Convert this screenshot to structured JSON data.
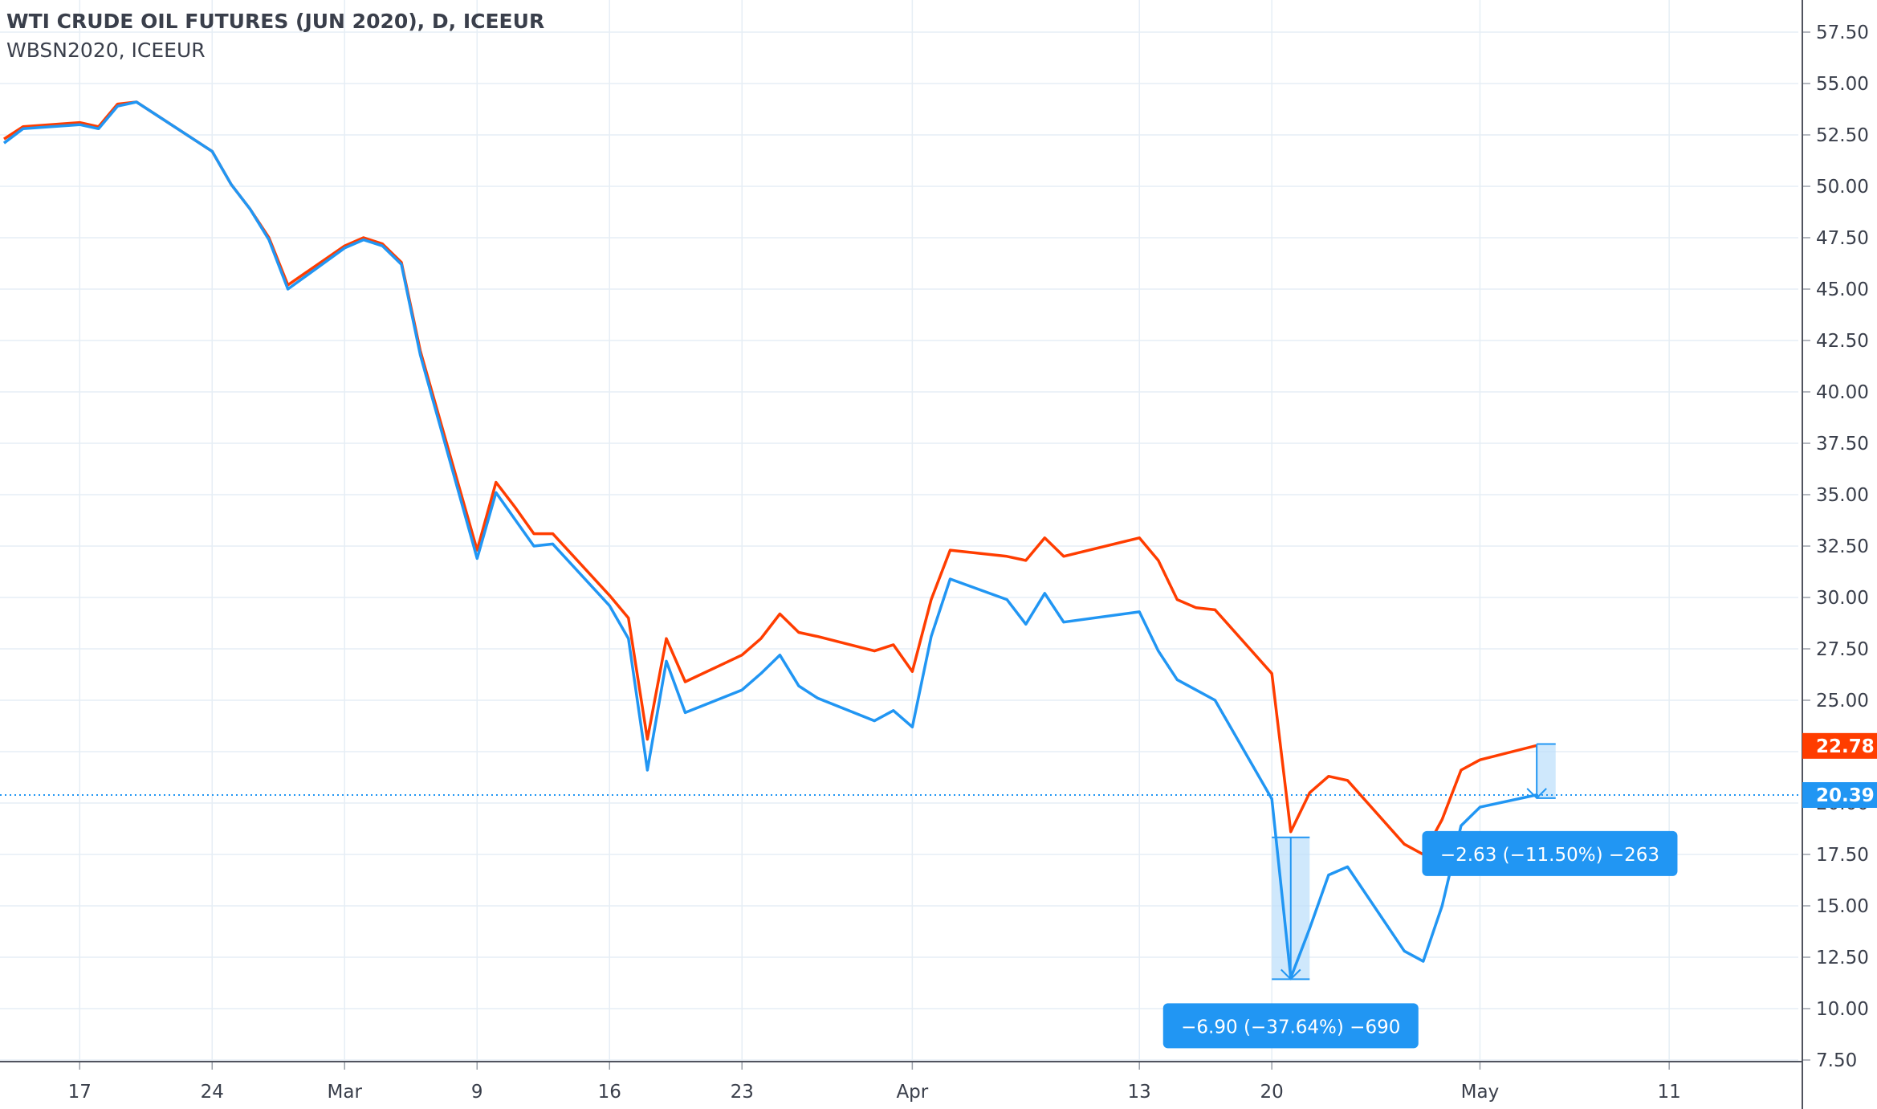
{
  "header": {
    "title": "WTI CRUDE OIL FUTURES (JUN 2020), D, ICEEUR",
    "subtitle": "WBSN2020, ICEEUR"
  },
  "colors": {
    "series_red": "#ff3d00",
    "series_blue": "#2196f3",
    "grid": "#e6eef5",
    "axis_text": "#3a3f4b",
    "annotation_bg": "#2196f3",
    "annotation_fill": "#bbdefb"
  },
  "chart_data": {
    "type": "line",
    "title": "WTI CRUDE OIL FUTURES (JUN 2020), D, ICEEUR",
    "xlabel": "",
    "ylabel": "",
    "ylim": [
      7.5,
      58.5
    ],
    "yticks": [
      7.5,
      10,
      12.5,
      15,
      17.5,
      20,
      22.5,
      25,
      27.5,
      30,
      32.5,
      35,
      37.5,
      40,
      42.5,
      45,
      47.5,
      50,
      52.5,
      55,
      57.5
    ],
    "ytick_labels": [
      "7.50",
      "10.00",
      "12.50",
      "15.00",
      "17.50",
      "20.00",
      "22.50",
      "25.00",
      "27.50",
      "30.00",
      "32.50",
      "35.00",
      "37.50",
      "40.00",
      "42.50",
      "45.00",
      "47.50",
      "50.00",
      "52.50",
      "55.00",
      "57.50"
    ],
    "x_start": "2020-02-13",
    "x_end": "2020-05-11",
    "xticks": [
      {
        "date": "2020-02-17",
        "label": "17"
      },
      {
        "date": "2020-02-24",
        "label": "24"
      },
      {
        "date": "2020-03-02",
        "label": "Mar"
      },
      {
        "date": "2020-03-09",
        "label": "9"
      },
      {
        "date": "2020-03-16",
        "label": "16"
      },
      {
        "date": "2020-03-23",
        "label": "23"
      },
      {
        "date": "2020-04-01",
        "label": "Apr"
      },
      {
        "date": "2020-04-13",
        "label": "13"
      },
      {
        "date": "2020-04-20",
        "label": "20"
      },
      {
        "date": "2020-05-01",
        "label": "May"
      },
      {
        "date": "2020-05-11",
        "label": "11"
      }
    ],
    "grid": true,
    "dates": [
      "2020-02-13",
      "2020-02-14",
      "2020-02-17",
      "2020-02-18",
      "2020-02-19",
      "2020-02-20",
      "2020-02-21",
      "2020-02-24",
      "2020-02-25",
      "2020-02-26",
      "2020-02-27",
      "2020-02-28",
      "2020-03-02",
      "2020-03-03",
      "2020-03-04",
      "2020-03-05",
      "2020-03-06",
      "2020-03-09",
      "2020-03-10",
      "2020-03-11",
      "2020-03-12",
      "2020-03-13",
      "2020-03-16",
      "2020-03-17",
      "2020-03-18",
      "2020-03-19",
      "2020-03-20",
      "2020-03-23",
      "2020-03-24",
      "2020-03-25",
      "2020-03-26",
      "2020-03-27",
      "2020-03-30",
      "2020-03-31",
      "2020-04-01",
      "2020-04-02",
      "2020-04-03",
      "2020-04-06",
      "2020-04-07",
      "2020-04-08",
      "2020-04-09",
      "2020-04-13",
      "2020-04-14",
      "2020-04-15",
      "2020-04-16",
      "2020-04-17",
      "2020-04-20",
      "2020-04-21",
      "2020-04-22",
      "2020-04-23",
      "2020-04-24",
      "2020-04-27",
      "2020-04-28",
      "2020-04-29",
      "2020-04-30",
      "2020-05-01",
      "2020-05-04"
    ],
    "series": [
      {
        "name": "WTI CRUDE OIL FUTURES (JUN 2020)",
        "color": "#ff3d00",
        "values": [
          52.3,
          52.9,
          53.1,
          52.9,
          54.0,
          54.1,
          53.5,
          51.7,
          50.1,
          48.9,
          47.5,
          45.2,
          47.1,
          47.5,
          47.2,
          46.3,
          42.0,
          32.3,
          35.6,
          34.4,
          33.1,
          33.1,
          30.1,
          29.0,
          23.1,
          28.0,
          25.9,
          27.2,
          28.0,
          29.2,
          28.3,
          28.1,
          27.4,
          27.7,
          26.4,
          29.9,
          32.3,
          32.0,
          31.8,
          32.9,
          32.0,
          32.9,
          31.8,
          29.9,
          29.5,
          29.4,
          26.3,
          18.6,
          20.5,
          21.3,
          21.1,
          18.0,
          17.5,
          19.2,
          21.6,
          22.1,
          22.8
        ]
      },
      {
        "name": "WBSN2020",
        "color": "#2196f3",
        "values": [
          52.1,
          52.8,
          53.0,
          52.8,
          53.9,
          54.1,
          53.5,
          51.7,
          50.1,
          48.9,
          47.4,
          45.0,
          47.0,
          47.4,
          47.1,
          46.2,
          41.8,
          31.9,
          35.1,
          33.8,
          32.5,
          32.6,
          29.6,
          28.0,
          21.6,
          26.9,
          24.4,
          25.5,
          26.3,
          27.2,
          25.7,
          25.1,
          24.0,
          24.5,
          23.7,
          28.1,
          30.9,
          29.9,
          28.7,
          30.2,
          28.8,
          29.3,
          27.4,
          26.0,
          25.5,
          25.0,
          20.2,
          11.5,
          13.9,
          16.5,
          16.9,
          12.8,
          12.3,
          15.0,
          18.9,
          19.8,
          20.4
        ]
      }
    ],
    "last_values": [
      {
        "label": "22.78",
        "value": 22.78,
        "color": "#ff3d00"
      },
      {
        "label": "20.39",
        "value": 20.39,
        "color": "#2196f3"
      }
    ],
    "price_line": {
      "value": 20.39,
      "style": "dotted"
    },
    "annotations": [
      {
        "text": "−6.90 (−37.64%) −690",
        "date_from": "2020-04-20",
        "date_to": "2020-04-22",
        "from": 18.33,
        "to": 11.43,
        "date_center": "2020-04-21",
        "label_date": "2020-04-21"
      },
      {
        "text": "−2.63 (−11.50%) −263",
        "date_from": "2020-05-04",
        "date_to": "2020-05-05",
        "from": 22.87,
        "to": 20.24,
        "date_center": "2020-05-04",
        "label_date": "2020-05-01"
      }
    ]
  }
}
